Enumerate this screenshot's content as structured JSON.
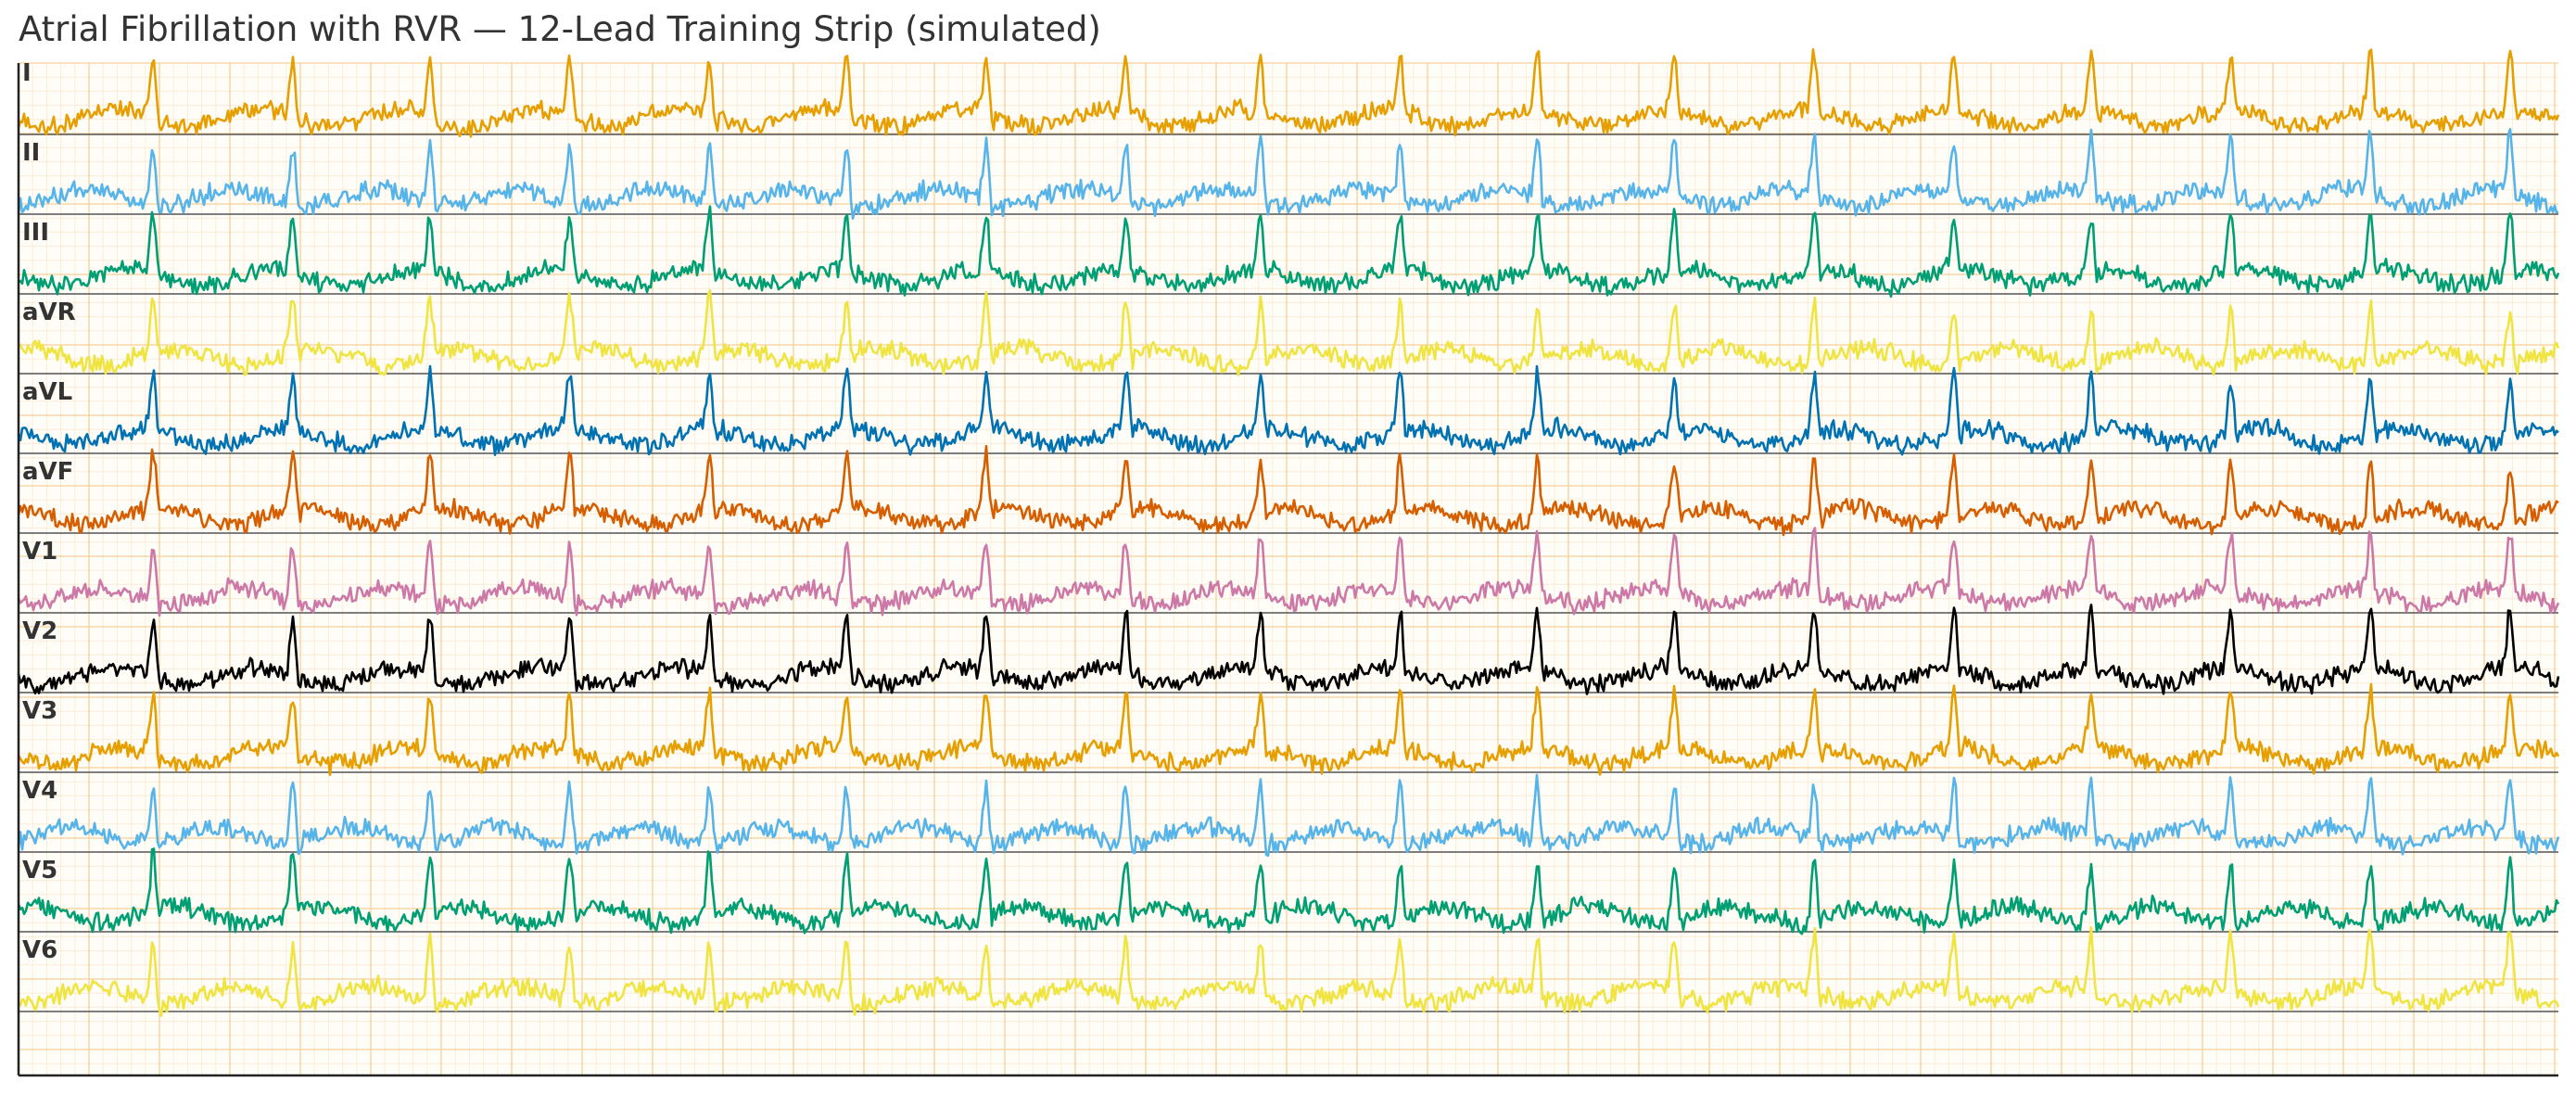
{
  "title": "Atrial Fibrillation with RVR — 12-Lead Training Strip (simulated)",
  "chart_data": {
    "type": "line",
    "title": "Atrial Fibrillation with RVR — 12-Lead Training Strip (simulated)",
    "xlabel": "",
    "ylabel": "",
    "grid": true,
    "grid_style": "ECG paper (small + large squares)",
    "grid_color": "#f3c27a",
    "baseline_color": "#555555",
    "rhythm": "irregularly irregular narrow-complex tachycardia with fibrillatory baseline",
    "r_peak_positions_relative": [
      0.053,
      0.108,
      0.162,
      0.217,
      0.272,
      0.326,
      0.381,
      0.436,
      0.489,
      0.544,
      0.598,
      0.652,
      0.707,
      0.762,
      0.816,
      0.871,
      0.926,
      0.981
    ],
    "series": [
      {
        "name": "I",
        "color": "#E69F00"
      },
      {
        "name": "II",
        "color": "#56B4E9"
      },
      {
        "name": "III",
        "color": "#009E73"
      },
      {
        "name": "aVR",
        "color": "#F0E442"
      },
      {
        "name": "aVL",
        "color": "#0072B2"
      },
      {
        "name": "aVF",
        "color": "#D55E00"
      },
      {
        "name": "V1",
        "color": "#CC79A7"
      },
      {
        "name": "V2",
        "color": "#000000"
      },
      {
        "name": "V3",
        "color": "#E69F00"
      },
      {
        "name": "V4",
        "color": "#56B4E9"
      },
      {
        "name": "V5",
        "color": "#009E73"
      },
      {
        "name": "V6",
        "color": "#F0E442"
      }
    ]
  }
}
